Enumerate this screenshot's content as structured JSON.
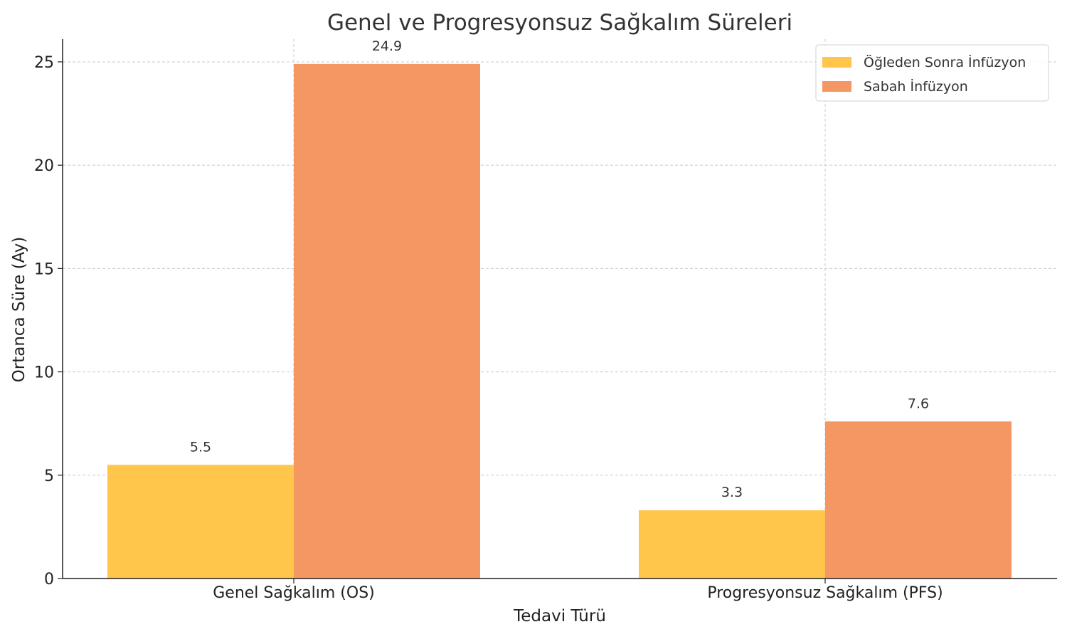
{
  "chart_data": {
    "type": "bar",
    "title": "Genel ve Progresyonsuz Sağkalım Süreleri",
    "xlabel": "Tedavi Türü",
    "ylabel": "Ortanca Süre (Ay)",
    "categories": [
      "Genel Sağkalım (OS)",
      "Progresyonsuz Sağkalım (PFS)"
    ],
    "series": [
      {
        "name": "Öğleden Sonra İnfüzyon",
        "values": [
          5.5,
          3.3
        ],
        "color": "#FFC64B"
      },
      {
        "name": "Sabah İnfüzyon",
        "values": [
          24.9,
          7.6
        ],
        "color": "#F59762"
      }
    ],
    "ylim": [
      0,
      26.1
    ],
    "yticks": [
      0,
      5,
      10,
      15,
      20,
      25
    ],
    "grid": true,
    "legend": "top-right",
    "data_labels": true
  }
}
